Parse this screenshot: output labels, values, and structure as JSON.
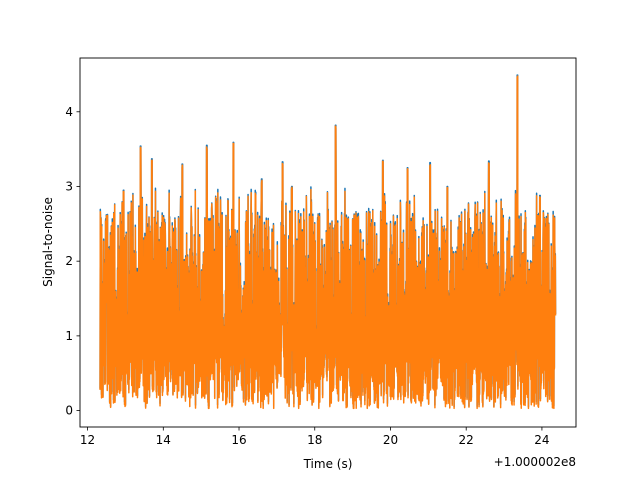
{
  "chart_data": {
    "type": "line",
    "title": "",
    "xlabel": "Time (s)",
    "ylabel": "Signal-to-noise",
    "x_offset_label": "+1.000002e8",
    "xlim": [
      11.8,
      24.9
    ],
    "ylim": [
      -0.22,
      4.72
    ],
    "x_ticks": [
      12,
      14,
      16,
      18,
      20,
      22,
      24
    ],
    "y_ticks": [
      0,
      1,
      2,
      3,
      4
    ],
    "grid": false,
    "legend": "none",
    "colors": {
      "series1": "#1f77b4",
      "series2": "#ff7f0e"
    },
    "series": [
      {
        "x_range": [
          12.33,
          24.36
        ],
        "peaks": [
          {
            "x": 12.35,
            "y": 2.58
          },
          {
            "x": 12.5,
            "y": 2.62
          },
          {
            "x": 12.95,
            "y": 2.95
          },
          {
            "x": 13.4,
            "y": 3.54
          },
          {
            "x": 13.7,
            "y": 3.37
          },
          {
            "x": 14.5,
            "y": 3.3
          },
          {
            "x": 15.15,
            "y": 3.55
          },
          {
            "x": 15.85,
            "y": 3.59
          },
          {
            "x": 16.6,
            "y": 3.1
          },
          {
            "x": 17.15,
            "y": 3.33
          },
          {
            "x": 17.4,
            "y": 3.0
          },
          {
            "x": 18.55,
            "y": 3.82
          },
          {
            "x": 19.8,
            "y": 3.35
          },
          {
            "x": 20.45,
            "y": 3.25
          },
          {
            "x": 21.05,
            "y": 3.32
          },
          {
            "x": 21.5,
            "y": 3.0
          },
          {
            "x": 22.6,
            "y": 3.34
          },
          {
            "x": 23.35,
            "y": 4.49
          },
          {
            "x": 23.95,
            "y": 2.88
          },
          {
            "x": 24.35,
            "y": 2.1
          }
        ],
        "range_y": [
          0.0,
          4.49
        ]
      },
      {
        "x_range": [
          12.33,
          24.36
        ],
        "range_y": [
          0.03,
          4.48
        ]
      }
    ]
  }
}
